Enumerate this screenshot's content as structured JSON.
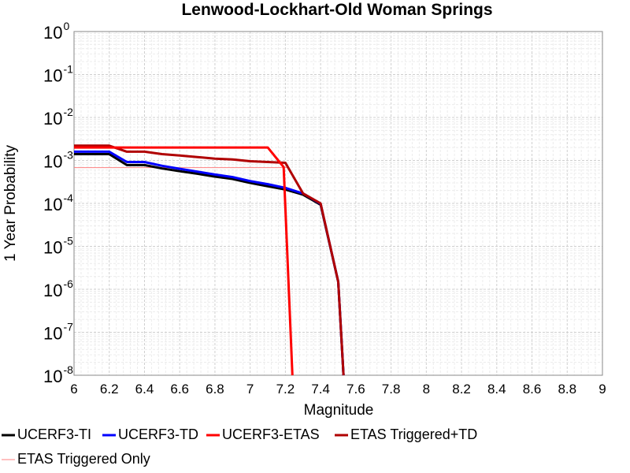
{
  "chart_data": {
    "type": "line",
    "title": "Lenwood-Lockhart-Old Woman Springs",
    "xlabel": "Magnitude",
    "ylabel": "1 Year Probability",
    "xlim": [
      6,
      9
    ],
    "ylim": [
      1e-08,
      1
    ],
    "yscale": "log",
    "grid": true,
    "legend_position": "bottom",
    "xticks": [
      "6",
      "6.2",
      "6.4",
      "6.6",
      "6.8",
      "7",
      "7.2",
      "7.4",
      "7.6",
      "7.8",
      "8",
      "8.2",
      "8.4",
      "8.6",
      "8.8",
      "9"
    ],
    "yticks": [
      {
        "base": "10",
        "exp": "0"
      },
      {
        "base": "10",
        "exp": "-1"
      },
      {
        "base": "10",
        "exp": "-2"
      },
      {
        "base": "10",
        "exp": "-3"
      },
      {
        "base": "10",
        "exp": "-4"
      },
      {
        "base": "10",
        "exp": "-5"
      },
      {
        "base": "10",
        "exp": "-6"
      },
      {
        "base": "10",
        "exp": "-7"
      },
      {
        "base": "10",
        "exp": "-8"
      }
    ],
    "series": [
      {
        "name": "UCERF3-TI",
        "color": "#000000",
        "x": [
          6.0,
          6.2,
          6.3,
          6.4,
          6.5,
          6.6,
          6.7,
          6.8,
          6.9,
          7.0,
          7.1,
          7.2,
          7.3,
          7.4,
          7.5,
          7.53
        ],
        "y": [
          0.0014,
          0.0014,
          0.00078,
          0.00078,
          0.00065,
          0.00056,
          0.00049,
          0.00042,
          0.00037,
          0.0003,
          0.00025,
          0.00021,
          0.00016,
          9.3e-05,
          1.5e-06,
          1e-08
        ]
      },
      {
        "name": "UCERF3-TD",
        "color": "#0000ff",
        "x": [
          6.0,
          6.2,
          6.3,
          6.4,
          6.5,
          6.6,
          6.7,
          6.8,
          6.9,
          7.0,
          7.1,
          7.2,
          7.3,
          7.4,
          7.5,
          7.53
        ],
        "y": [
          0.0016,
          0.0016,
          0.00092,
          0.00092,
          0.00075,
          0.00064,
          0.00055,
          0.00047,
          0.00041,
          0.00033,
          0.00028,
          0.00023,
          0.00017,
          9.8e-05,
          1.5e-06,
          1e-08
        ]
      },
      {
        "name": "UCERF3-ETAS",
        "color": "#ff0000",
        "x": [
          6.0,
          7.1,
          7.19,
          7.24
        ],
        "y": [
          0.002,
          0.002,
          0.0007,
          1e-08
        ]
      },
      {
        "name": "ETAS Triggered+TD",
        "color": "#b00000",
        "x": [
          6.0,
          6.2,
          6.3,
          6.4,
          6.5,
          6.6,
          6.7,
          6.8,
          6.9,
          7.0,
          7.1,
          7.2,
          7.3,
          7.4,
          7.5,
          7.53
        ],
        "y": [
          0.0022,
          0.0022,
          0.0016,
          0.0016,
          0.0014,
          0.0013,
          0.0012,
          0.0011,
          0.00105,
          0.00096,
          0.00092,
          0.00088,
          0.00017,
          0.0001,
          1.5e-06,
          1e-08
        ]
      },
      {
        "name": "ETAS Triggered Only",
        "color": "#ff8080",
        "x": [
          6.0,
          7.22
        ],
        "y": [
          0.00068,
          0.00068
        ]
      }
    ]
  }
}
